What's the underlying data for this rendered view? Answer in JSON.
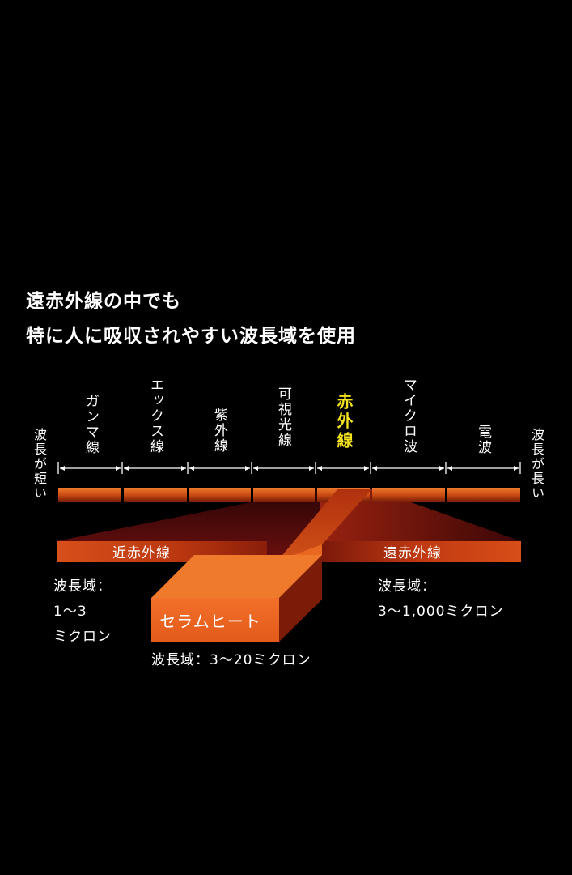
{
  "headline": {
    "line1": "遠赤外線の中でも",
    "line2": "特に人に吸収されやすい波長域を使用"
  },
  "scale": {
    "short_label": "波長が短い",
    "long_label": "波長が長い",
    "bands": [
      {
        "label": "ガンマ線"
      },
      {
        "label": "エックス線"
      },
      {
        "label": "紫外線"
      },
      {
        "label": "可視光線"
      },
      {
        "label": "赤外線",
        "highlight": true
      },
      {
        "label": "マイクロ波"
      },
      {
        "label": "電波"
      }
    ]
  },
  "near_ir": {
    "name": "近赤外線",
    "range_label": "波長域：",
    "range_value": "1〜3",
    "range_unit": "ミクロン"
  },
  "far_ir": {
    "name": "遠赤外線",
    "range_label": "波長域：",
    "range_value": "3〜1,000ミクロン"
  },
  "ceramheat": {
    "name": "セラムヒート",
    "range": "波長域：3〜20ミクロン"
  },
  "colors": {
    "background": "#000000",
    "highlight_text": "#f3e21e",
    "bar_orange": "#e8641c",
    "dark_red": "#5a0a0a"
  }
}
